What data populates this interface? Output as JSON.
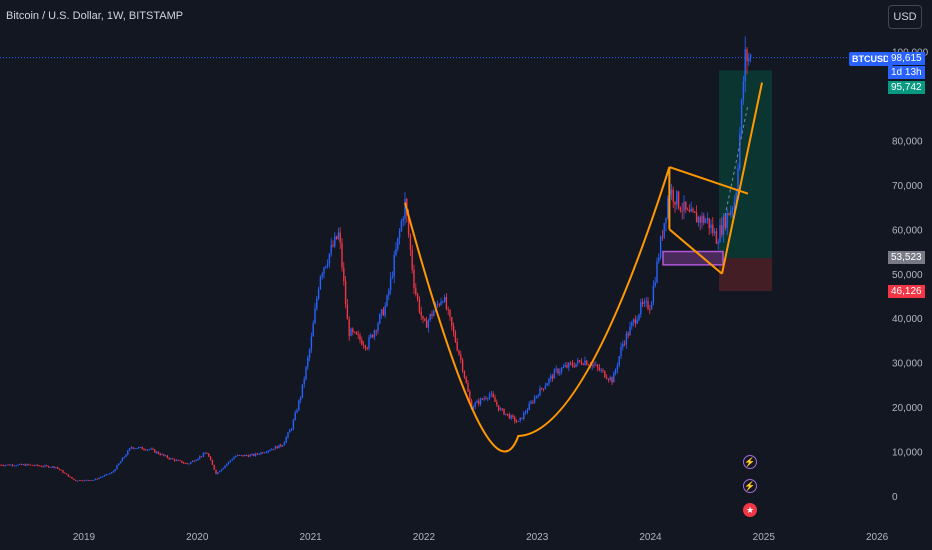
{
  "header": {
    "title": "Bitcoin / U.S. Dollar, 1W, BITSTAMP"
  },
  "toolbar": {
    "currency_label": "USD"
  },
  "price_scale": {
    "symbol": "BTCUSD",
    "last_price": "98,615",
    "countdown": "1d 13h",
    "target_price": "95,742",
    "entry_price": "53,523",
    "stop_price": "46,126"
  },
  "events": {
    "icons": [
      "lightning-icon",
      "lightning-icon",
      "us-flag-icon"
    ]
  },
  "colors": {
    "up": "#2962ff",
    "down": "#f23645",
    "pattern": "#ff9800",
    "profit_zone": "#0b3b34",
    "loss_zone": "#4a1f26",
    "background": "#131722"
  },
  "chart_data": {
    "type": "line",
    "title": "Bitcoin / U.S. Dollar, 1W, BITSTAMP",
    "xlabel": "",
    "ylabel": "",
    "x_ticks": [
      "2019",
      "2020",
      "2021",
      "2022",
      "2023",
      "2024",
      "2025",
      "2026"
    ],
    "y_ticks": [
      "0",
      "10,000",
      "20,000",
      "30,000",
      "40,000",
      "50,000",
      "60,000",
      "70,000",
      "80,000",
      "100,000"
    ],
    "ylim": [
      -2000,
      100000
    ],
    "grid": false,
    "series": [
      {
        "x": [
          "2018-07",
          "2018-10",
          "2018-12",
          "2019-02",
          "2019-04",
          "2019-06",
          "2019-08",
          "2019-10",
          "2019-12",
          "2020-02",
          "2020-03",
          "2020-05",
          "2020-07",
          "2020-09",
          "2020-10",
          "2020-11",
          "2020-12",
          "2021-01",
          "2021-02",
          "2021-04",
          "2021-05",
          "2021-07",
          "2021-09",
          "2021-11",
          "2021-12",
          "2022-01",
          "2022-03",
          "2022-05",
          "2022-06",
          "2022-08",
          "2022-09",
          "2022-11",
          "2023-01",
          "2023-03",
          "2023-04",
          "2023-06",
          "2023-07",
          "2023-09",
          "2023-10",
          "2023-12",
          "2024-01",
          "2024-03",
          "2024-05",
          "2024-07",
          "2024-08",
          "2024-10",
          "2024-11"
        ],
        "values": [
          7000,
          6500,
          3500,
          3600,
          5300,
          11000,
          10500,
          8500,
          7200,
          9800,
          5000,
          9000,
          9200,
          10700,
          11500,
          15500,
          23000,
          34000,
          50000,
          59000,
          37000,
          34000,
          43000,
          66000,
          47000,
          38000,
          45000,
          30000,
          20000,
          23000,
          19500,
          16500,
          23000,
          28000,
          29000,
          30500,
          29300,
          26000,
          34000,
          42500,
          43000,
          69000,
          63000,
          62000,
          58000,
          67000,
          98615
        ]
      }
    ],
    "levels": {
      "last": 98615,
      "target": 95742,
      "entry": 53523,
      "stop": 46126
    },
    "annotations": [
      "cup-and-handle pattern",
      "falling wedge",
      "long position box"
    ]
  }
}
